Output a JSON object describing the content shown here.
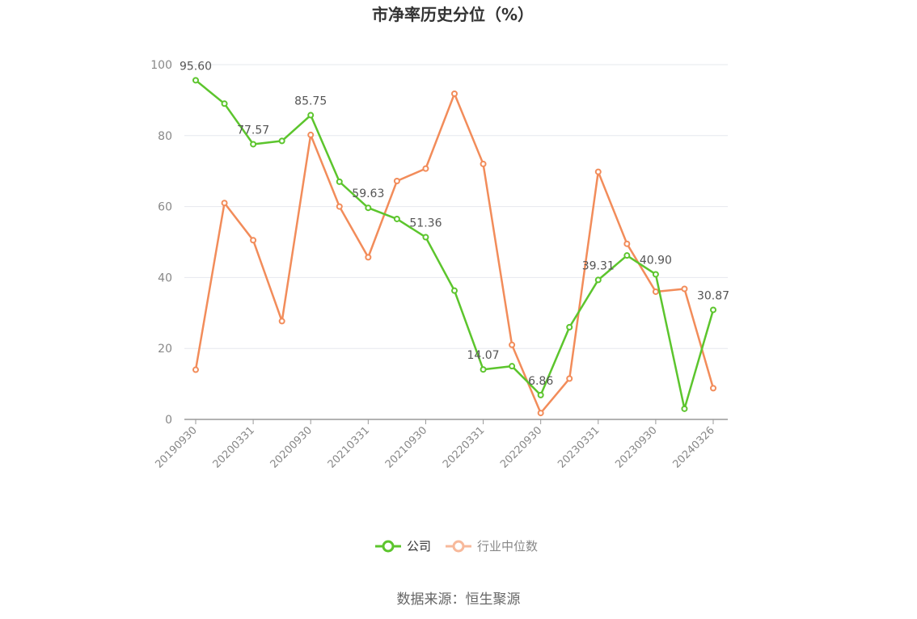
{
  "chart_data": {
    "type": "line",
    "title": "市净率历史分位（%）",
    "ylim": [
      0,
      100
    ],
    "y_ticks": [
      "0",
      "20",
      "40",
      "60",
      "80",
      "100"
    ],
    "x_tick_labels": [
      "20190930",
      "20200331",
      "20200930",
      "20210331",
      "20210930",
      "20220331",
      "20220930",
      "20230331",
      "20230930",
      "20240326"
    ],
    "x": [
      "20190930",
      "20191231",
      "20200331",
      "20200630",
      "20200930",
      "20201231",
      "20210331",
      "20210630",
      "20210930",
      "20211231",
      "20220331",
      "20220630",
      "20220930",
      "20221231",
      "20230331",
      "20230630",
      "20230930",
      "20231231",
      "20240326"
    ],
    "series": [
      {
        "name": "公司",
        "color": "#5cc52d",
        "values": [
          95.6,
          89.0,
          77.57,
          78.5,
          85.75,
          67.0,
          59.63,
          56.5,
          51.36,
          36.3,
          14.07,
          15.0,
          6.86,
          26.0,
          39.31,
          46.2,
          40.9,
          3.0,
          30.87
        ],
        "labels": {
          "0": "95.60",
          "2": "77.57",
          "4": "85.75",
          "6": "59.63",
          "8": "51.36",
          "10": "14.07",
          "12": "6.86",
          "14": "39.31",
          "16": "40.90",
          "18": "30.87"
        }
      },
      {
        "name": "行业中位数",
        "color": "#f28c5a",
        "values": [
          14.0,
          61.0,
          50.5,
          27.7,
          80.2,
          60.0,
          45.7,
          67.2,
          70.7,
          91.8,
          72.0,
          21.0,
          1.8,
          11.5,
          69.8,
          49.5,
          36.0,
          36.8,
          8.8
        ]
      }
    ],
    "grid": true,
    "legend_position": "bottom-center"
  },
  "legend": {
    "items": [
      "公司",
      "行业中位数"
    ]
  },
  "source": "数据来源：恒生聚源"
}
